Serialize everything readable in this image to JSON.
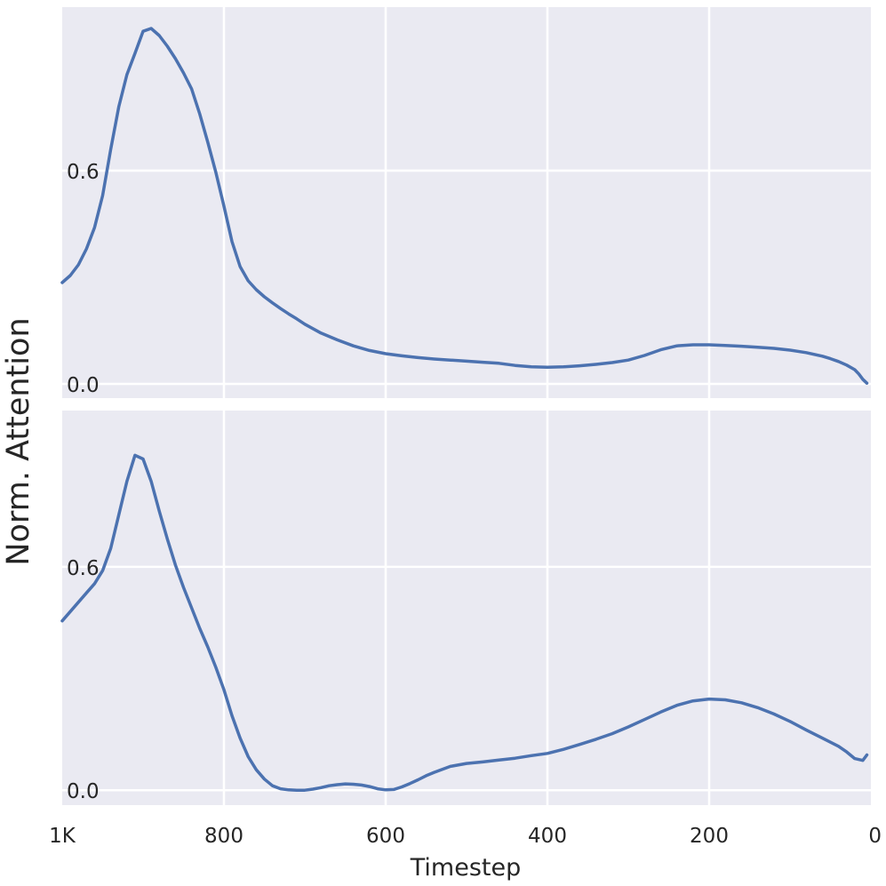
{
  "chart_data": {
    "type": "line",
    "xlabel": "Timestep",
    "ylabel": "Norm. Attention",
    "x_reversed": true,
    "xlim": [
      1000,
      0
    ],
    "x_ticks": [
      1000,
      800,
      600,
      400,
      200,
      0
    ],
    "x_tick_labels": [
      "1K",
      "800",
      "600",
      "400",
      "200",
      "0"
    ],
    "grid": true,
    "panels": [
      {
        "ylim": [
          -0.04,
          1.06
        ],
        "y_ticks": [
          0.0,
          0.6
        ],
        "y_tick_labels": [
          "0.0",
          "0.6"
        ],
        "series": [
          {
            "x": [
              1000,
              990,
              980,
              970,
              960,
              950,
              940,
              930,
              920,
              910,
              900,
              890,
              880,
              870,
              860,
              850,
              840,
              830,
              820,
              810,
              800,
              790,
              780,
              770,
              760,
              750,
              740,
              730,
              720,
              710,
              700,
              680,
              660,
              640,
              620,
              600,
              580,
              560,
              540,
              520,
              500,
              480,
              460,
              440,
              420,
              400,
              380,
              360,
              340,
              320,
              300,
              280,
              260,
              240,
              220,
              200,
              180,
              160,
              140,
              120,
              100,
              80,
              60,
              50,
              40,
              30,
              20,
              15,
              10,
              5
            ],
            "y": [
              0.285,
              0.305,
              0.335,
              0.38,
              0.44,
              0.53,
              0.66,
              0.78,
              0.87,
              0.93,
              0.992,
              1.0,
              0.98,
              0.95,
              0.915,
              0.875,
              0.83,
              0.76,
              0.68,
              0.595,
              0.5,
              0.4,
              0.33,
              0.29,
              0.265,
              0.245,
              0.228,
              0.212,
              0.197,
              0.183,
              0.168,
              0.143,
              0.124,
              0.107,
              0.094,
              0.085,
              0.079,
              0.074,
              0.07,
              0.067,
              0.064,
              0.061,
              0.058,
              0.052,
              0.048,
              0.047,
              0.048,
              0.051,
              0.055,
              0.06,
              0.067,
              0.08,
              0.096,
              0.107,
              0.11,
              0.11,
              0.108,
              0.106,
              0.103,
              0.1,
              0.095,
              0.088,
              0.078,
              0.071,
              0.063,
              0.053,
              0.04,
              0.028,
              0.013,
              0.002
            ]
          }
        ]
      },
      {
        "ylim": [
          -0.04,
          1.02
        ],
        "y_ticks": [
          0.0,
          0.6
        ],
        "y_tick_labels": [
          "0.0",
          "0.6"
        ],
        "series": [
          {
            "x": [
              1000,
              990,
              980,
              970,
              960,
              950,
              940,
              930,
              920,
              910,
              900,
              890,
              880,
              870,
              860,
              850,
              840,
              830,
              820,
              810,
              800,
              790,
              780,
              770,
              760,
              750,
              740,
              730,
              720,
              710,
              700,
              690,
              680,
              670,
              660,
              650,
              640,
              630,
              620,
              610,
              600,
              590,
              580,
              570,
              560,
              550,
              540,
              520,
              500,
              480,
              460,
              440,
              420,
              400,
              380,
              360,
              340,
              320,
              300,
              280,
              260,
              240,
              220,
              200,
              180,
              160,
              140,
              120,
              100,
              80,
              60,
              40,
              30,
              20,
              10,
              5
            ],
            "y": [
              0.455,
              0.48,
              0.505,
              0.53,
              0.555,
              0.59,
              0.65,
              0.74,
              0.83,
              0.9,
              0.89,
              0.83,
              0.75,
              0.675,
              0.605,
              0.545,
              0.49,
              0.435,
              0.385,
              0.33,
              0.27,
              0.2,
              0.14,
              0.09,
              0.055,
              0.03,
              0.012,
              0.004,
              0.001,
              0.0,
              0.0,
              0.003,
              0.007,
              0.012,
              0.015,
              0.017,
              0.016,
              0.014,
              0.01,
              0.004,
              0.001,
              0.002,
              0.009,
              0.018,
              0.028,
              0.039,
              0.048,
              0.064,
              0.072,
              0.076,
              0.081,
              0.086,
              0.093,
              0.099,
              0.11,
              0.123,
              0.137,
              0.152,
              0.17,
              0.19,
              0.21,
              0.228,
              0.24,
              0.245,
              0.243,
              0.235,
              0.222,
              0.205,
              0.185,
              0.162,
              0.14,
              0.118,
              0.103,
              0.085,
              0.08,
              0.095
            ]
          }
        ]
      }
    ]
  }
}
